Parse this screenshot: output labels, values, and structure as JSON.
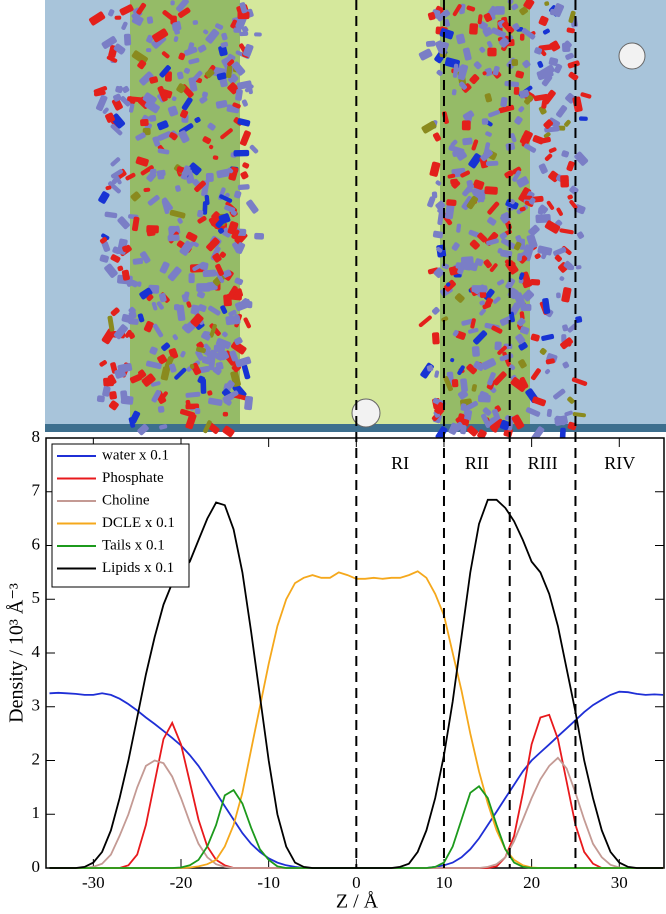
{
  "chart_data": {
    "type": "line",
    "x_label": "Z  /  Å",
    "y_label": "Density  /  10³ Å⁻³",
    "xlim": [
      -35.4,
      35.1
    ],
    "ylim": [
      0,
      8
    ],
    "xticks": [
      -30,
      -20,
      -10,
      0,
      10,
      20,
      30
    ],
    "yticks": [
      0,
      1,
      2,
      3,
      4,
      5,
      6,
      7,
      8
    ],
    "legend": "upper left",
    "vlines": [
      0,
      10,
      17.5,
      25
    ],
    "annotations": [
      "RI",
      "RII",
      "RIII",
      "RIV"
    ],
    "x": [
      -35,
      -34,
      -33,
      -32,
      -31,
      -30,
      -29,
      -28,
      -27,
      -26,
      -25,
      -24,
      -23,
      -22,
      -21,
      -20,
      -19,
      -18,
      -17,
      -16,
      -15,
      -14,
      -13,
      -12,
      -11,
      -10,
      -9,
      -8,
      -7,
      -6,
      -5,
      -4,
      -3,
      -2,
      -1,
      0,
      1,
      2,
      3,
      4,
      5,
      6,
      7,
      8,
      9,
      10,
      11,
      12,
      13,
      14,
      15,
      16,
      17,
      18,
      19,
      20,
      21,
      22,
      23,
      24,
      25,
      26,
      27,
      28,
      29,
      30,
      31,
      32,
      33,
      34,
      35
    ],
    "series": [
      {
        "name": "water x 0.1",
        "color": "#1f2fd6",
        "values": [
          3.25,
          3.26,
          3.25,
          3.24,
          3.22,
          3.22,
          3.25,
          3.22,
          3.15,
          3.05,
          2.93,
          2.8,
          2.68,
          2.55,
          2.42,
          2.28,
          2.1,
          1.9,
          1.65,
          1.4,
          1.15,
          0.9,
          0.65,
          0.45,
          0.3,
          0.18,
          0.1,
          0.05,
          0.02,
          0,
          0,
          0,
          0,
          0,
          0,
          0,
          0,
          0,
          0,
          0,
          0,
          0,
          0,
          0,
          0.02,
          0.05,
          0.1,
          0.2,
          0.35,
          0.55,
          0.8,
          1.05,
          1.3,
          1.55,
          1.8,
          2.0,
          2.15,
          2.3,
          2.45,
          2.6,
          2.75,
          2.9,
          3.03,
          3.13,
          3.22,
          3.28,
          3.27,
          3.24,
          3.22,
          3.23,
          3.22
        ]
      },
      {
        "name": "Phosphate",
        "color": "#e8191c",
        "values": [
          0,
          0,
          0,
          0,
          0,
          0,
          0,
          0,
          0,
          0.05,
          0.25,
          0.8,
          1.6,
          2.4,
          2.7,
          2.3,
          1.6,
          0.9,
          0.4,
          0.15,
          0.05,
          0,
          0,
          0,
          0,
          0,
          0,
          0,
          0,
          0,
          0,
          0,
          0,
          0,
          0,
          0,
          0,
          0,
          0,
          0,
          0,
          0,
          0,
          0,
          0,
          0,
          0,
          0,
          0,
          0,
          0,
          0.03,
          0.2,
          0.6,
          1.4,
          2.3,
          2.8,
          2.85,
          2.4,
          1.6,
          0.8,
          0.3,
          0.08,
          0,
          0,
          0,
          0,
          0,
          0,
          0,
          0
        ]
      },
      {
        "name": "Choline",
        "color": "#c49a94",
        "values": [
          0,
          0,
          0,
          0,
          0,
          0.02,
          0.08,
          0.25,
          0.6,
          1.0,
          1.5,
          1.9,
          2.0,
          1.95,
          1.7,
          1.3,
          0.85,
          0.45,
          0.2,
          0.07,
          0.02,
          0,
          0,
          0,
          0,
          0,
          0,
          0,
          0,
          0,
          0,
          0,
          0,
          0,
          0,
          0,
          0,
          0,
          0,
          0,
          0,
          0,
          0,
          0,
          0,
          0,
          0,
          0,
          0,
          0,
          0.02,
          0.07,
          0.2,
          0.5,
          0.9,
          1.3,
          1.65,
          1.9,
          2.05,
          1.85,
          1.4,
          0.9,
          0.45,
          0.2,
          0.06,
          0.01,
          0,
          0,
          0,
          0,
          0
        ]
      },
      {
        "name": "DCLE x 0.1",
        "color": "#f5a81c",
        "values": [
          0,
          0,
          0,
          0,
          0,
          0,
          0,
          0,
          0,
          0,
          0,
          0,
          0,
          0,
          0,
          0,
          0.01,
          0.03,
          0.07,
          0.15,
          0.4,
          0.8,
          1.4,
          2.2,
          3.0,
          3.8,
          4.5,
          5.0,
          5.3,
          5.4,
          5.45,
          5.4,
          5.4,
          5.5,
          5.45,
          5.38,
          5.38,
          5.4,
          5.38,
          5.4,
          5.4,
          5.45,
          5.52,
          5.4,
          5.1,
          4.7,
          4.0,
          3.3,
          2.5,
          1.8,
          1.2,
          0.7,
          0.35,
          0.15,
          0.05,
          0.01,
          0,
          0,
          0,
          0,
          0,
          0,
          0,
          0,
          0,
          0,
          0,
          0,
          0,
          0,
          0
        ]
      },
      {
        "name": "Tails x 0.1",
        "color": "#1c9a1c",
        "values": [
          0,
          0,
          0,
          0,
          0,
          0,
          0,
          0,
          0,
          0,
          0,
          0,
          0,
          0,
          0,
          0.01,
          0.05,
          0.15,
          0.4,
          0.8,
          1.35,
          1.45,
          1.2,
          0.75,
          0.35,
          0.15,
          0.03,
          0,
          0,
          0,
          0,
          0,
          0,
          0,
          0,
          0,
          0,
          0,
          0,
          0,
          0,
          0,
          0,
          0,
          0.02,
          0.1,
          0.4,
          0.9,
          1.4,
          1.52,
          1.3,
          0.8,
          0.35,
          0.1,
          0.02,
          0,
          0,
          0,
          0,
          0,
          0,
          0,
          0,
          0,
          0,
          0,
          0,
          0,
          0,
          0,
          0
        ]
      },
      {
        "name": "Lipids x 0.1",
        "color": "#000000",
        "values": [
          0,
          0,
          0,
          0,
          0.02,
          0.1,
          0.3,
          0.7,
          1.3,
          2.0,
          2.8,
          3.6,
          4.3,
          4.9,
          5.3,
          5.5,
          5.7,
          6.1,
          6.5,
          6.8,
          6.75,
          6.3,
          5.5,
          4.4,
          3.2,
          2.0,
          1.0,
          0.4,
          0.1,
          0.02,
          0,
          0,
          0,
          0,
          0,
          0,
          0,
          0,
          0,
          0,
          0.02,
          0.08,
          0.3,
          0.7,
          1.3,
          2.1,
          3.1,
          4.3,
          5.5,
          6.4,
          6.85,
          6.85,
          6.7,
          6.45,
          6.1,
          5.7,
          5.5,
          5.1,
          4.5,
          3.7,
          2.9,
          2.0,
          1.3,
          0.7,
          0.3,
          0.1,
          0.02,
          0,
          0,
          0,
          0
        ]
      }
    ]
  }
}
